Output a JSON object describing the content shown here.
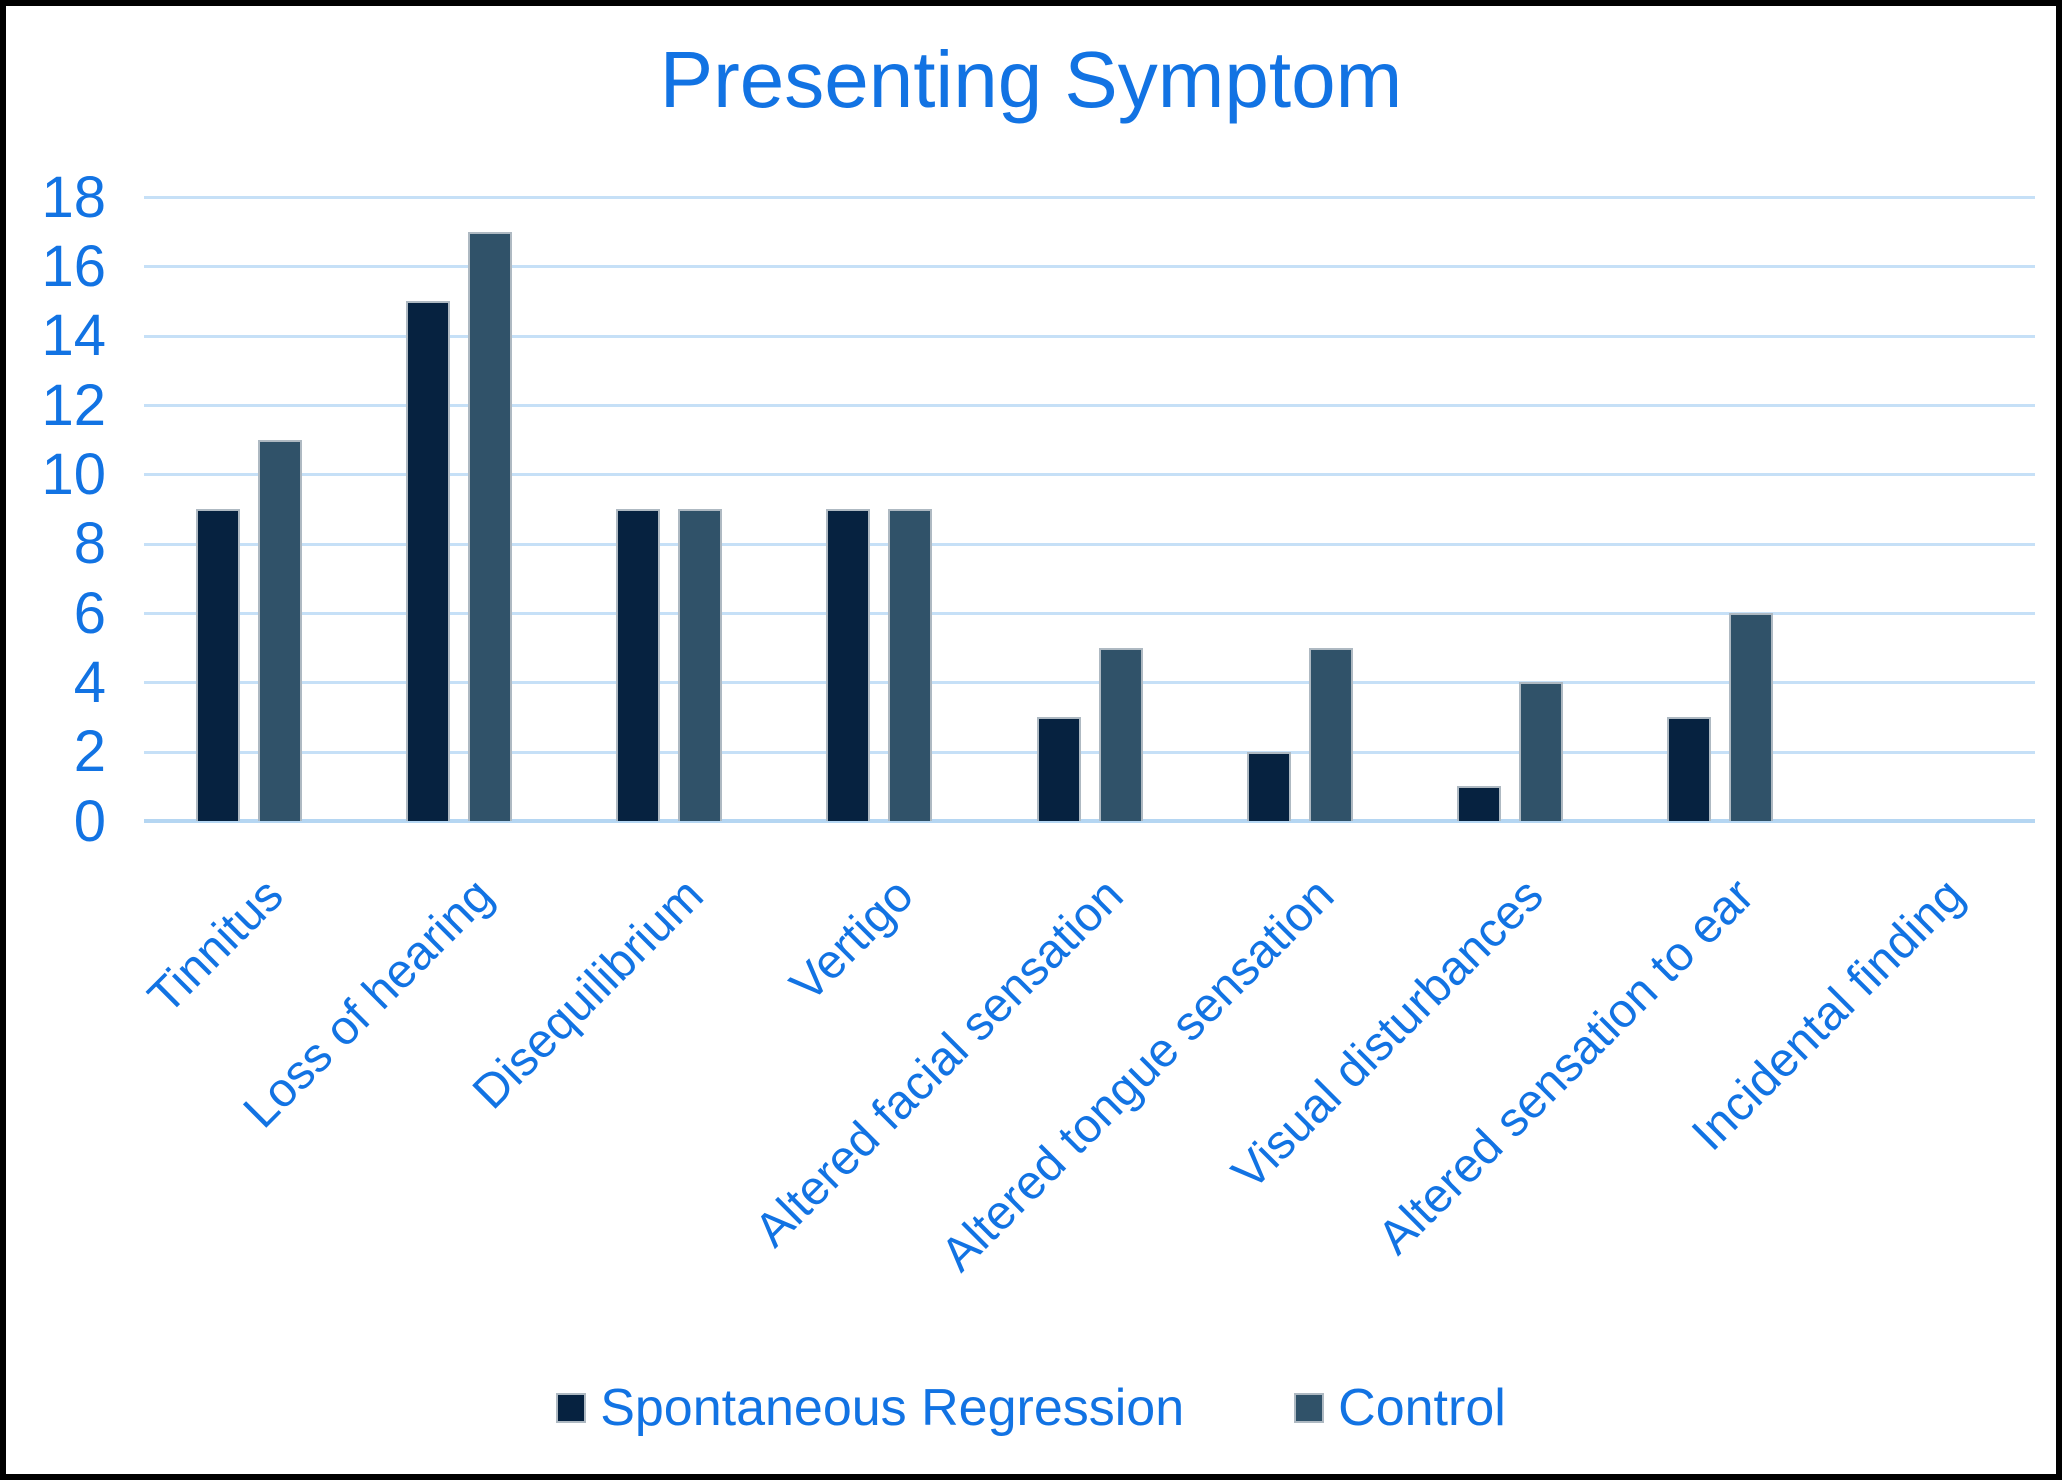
{
  "chart_data": {
    "type": "bar",
    "title": "Presenting Symptom",
    "categories": [
      "Tinnitus",
      "Loss of hearing",
      "Disequilibrium",
      "Vertigo",
      "Altered facial sensation",
      "Altered tongue sensation",
      "Visual disturbances",
      "Altered sensation to ear",
      "Incidental finding"
    ],
    "series": [
      {
        "name": "Spontaneous Regression",
        "color": "#062240",
        "values": [
          9,
          15,
          9,
          9,
          3,
          2,
          1,
          3,
          0
        ]
      },
      {
        "name": "Control",
        "color": "#305269",
        "values": [
          11,
          17,
          9,
          9,
          5,
          5,
          4,
          6,
          0
        ]
      }
    ],
    "ylim": [
      0,
      18
    ],
    "ytick_step": 2,
    "xlabel": "",
    "ylabel": "",
    "grid": "horizontal",
    "legend_position": "bottom",
    "text_color": "#1273E3",
    "gridline_color": "#C6E0F7",
    "baseline_color": "#B5D6F2",
    "bar_border_color": "#AEB9C2",
    "background_color": "#FFFFFF",
    "frame_color": "#000000"
  }
}
